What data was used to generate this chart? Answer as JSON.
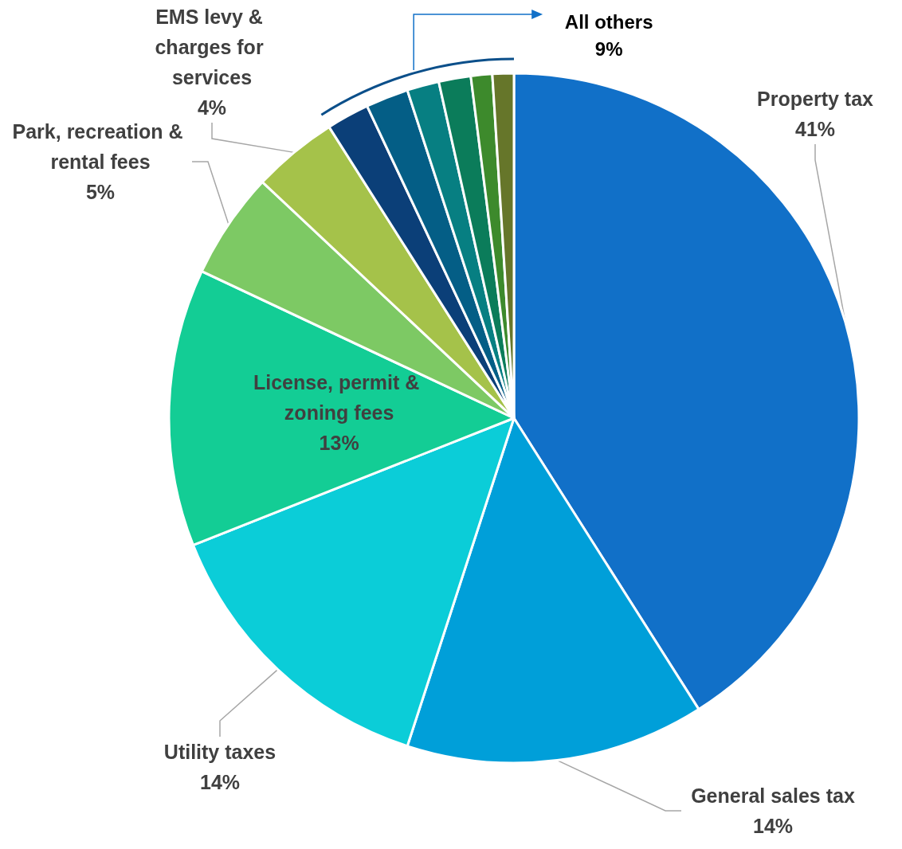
{
  "chart_data": {
    "type": "pie",
    "categories": [
      "Property tax",
      "General sales tax",
      "Utility taxes",
      "License, permit & zoning fees",
      "Park, recreation & rental fees",
      "EMS levy & charges for services",
      null,
      null,
      null,
      null,
      null,
      null
    ],
    "values": [
      41,
      14,
      14,
      13,
      5,
      4,
      2,
      2,
      1.5,
      1.5,
      1,
      1
    ],
    "value_labels": [
      "41%",
      "14%",
      "14%",
      "13%",
      "5%",
      "4%",
      null,
      null,
      null,
      null,
      null,
      null
    ],
    "colors": [
      "#1170c8",
      "#009fd9",
      "#0bcdd8",
      "#13cd95",
      "#7dc964",
      "#a5c24a",
      "#0b3f78",
      "#045e86",
      "#077f82",
      "#0b7c5a",
      "#3d8a2c",
      "#66762a"
    ],
    "annotations": [
      "All others\n9%"
    ],
    "legend": false
  }
}
